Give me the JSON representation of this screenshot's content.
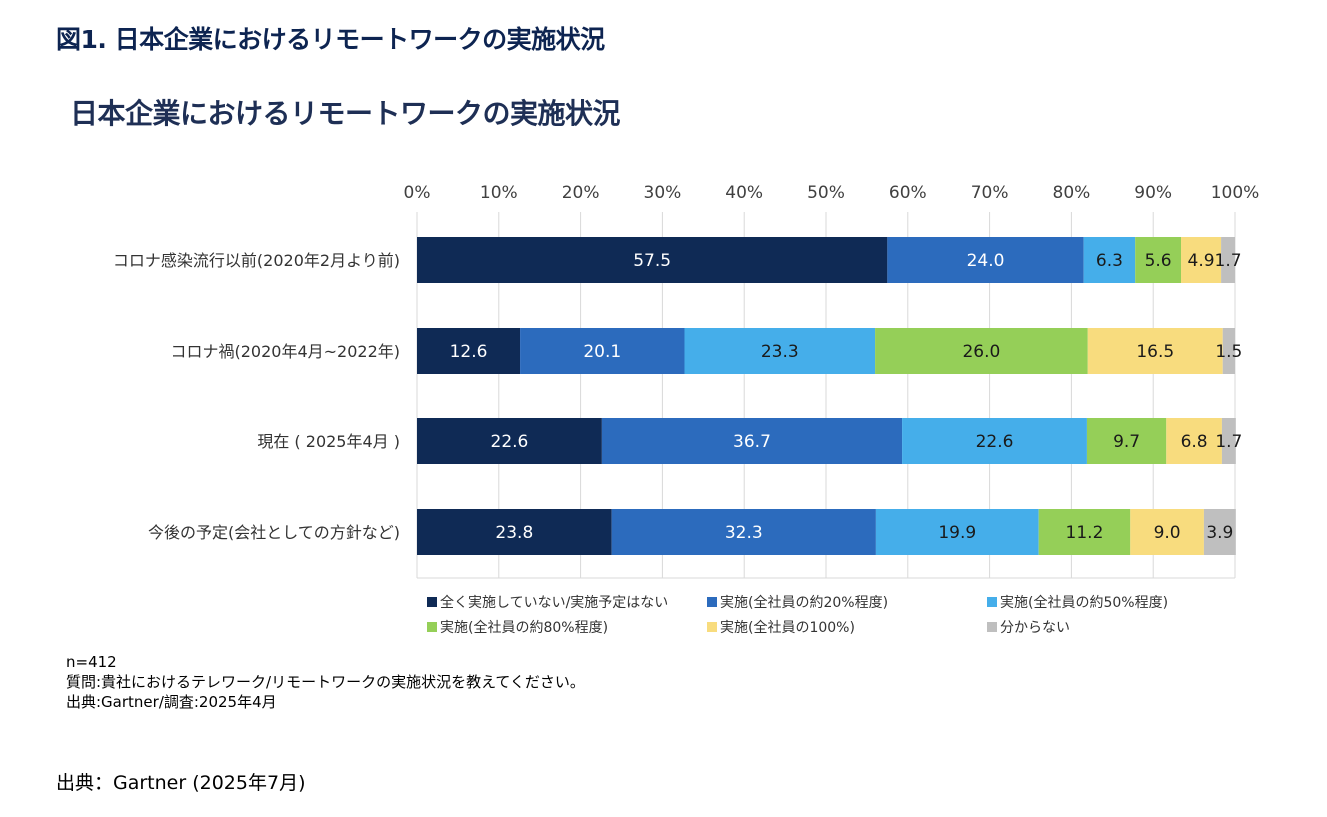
{
  "figure_title": "図1. 日本企業におけるリモートワークの実施状況",
  "notes": {
    "n": "n=412",
    "question": "質問:貴社におけるテレワーク/リモートワークの実施状況を教えてください。",
    "source": "出典:Gartner/調査:2025年4月"
  },
  "source_caption": "出典：Gartner (2025年7月)",
  "colors": {
    "s1": "#0f2a55",
    "s2": "#2c6bbd",
    "s3": "#45aeea",
    "s4": "#95cf58",
    "s5": "#f8dc7e",
    "s6": "#bfbfbf"
  },
  "chart_data": {
    "type": "bar",
    "orientation": "horizontal",
    "stacked": true,
    "title": "日本企業におけるリモートワークの実施状況",
    "xlim": [
      0,
      100
    ],
    "x_ticks": [
      "0%",
      "10%",
      "20%",
      "30%",
      "40%",
      "50%",
      "60%",
      "70%",
      "80%",
      "90%",
      "100%"
    ],
    "x_axis_position": "top",
    "legend_position": "bottom",
    "categories": [
      "コロナ感染流行以前(2020年2月より前)",
      "コロナ禍(2020年4月~2022年)",
      "現在 ( 2025年4月 )",
      "今後の予定(会社としての方針など)"
    ],
    "series": [
      {
        "name": "全く実施していない/実施予定はない",
        "values": [
          57.5,
          12.6,
          22.6,
          23.8
        ],
        "labels": [
          "57.5",
          "12.6",
          "22.6",
          "23.8"
        ],
        "color": "#0f2a55",
        "label_color": "#ffffff"
      },
      {
        "name": "実施(全社員の約20%程度)",
        "values": [
          24.0,
          20.1,
          36.7,
          32.3
        ],
        "labels": [
          "24.0",
          "20.1",
          "36.7",
          "32.3"
        ],
        "color": "#2c6bbd",
        "label_color": "#ffffff"
      },
      {
        "name": "実施(全社員の約50%程度)",
        "values": [
          6.3,
          23.3,
          22.6,
          19.9
        ],
        "labels": [
          "6.3",
          "23.3",
          "22.6",
          "19.9"
        ],
        "color": "#45aeea",
        "label_color": "#1a1a1a"
      },
      {
        "name": "実施(全社員の約80%程度)",
        "values": [
          5.6,
          26.0,
          9.7,
          11.2
        ],
        "labels": [
          "5.6",
          "26.0",
          "9.7",
          "11.2"
        ],
        "color": "#95cf58",
        "label_color": "#1a1a1a"
      },
      {
        "name": "実施(全社員の100%)",
        "values": [
          4.9,
          16.5,
          6.8,
          9.0
        ],
        "labels": [
          "4.9",
          "16.5",
          "6.8",
          "9.0"
        ],
        "color": "#f8dc7e",
        "label_color": "#1a1a1a"
      },
      {
        "name": "分からない",
        "values": [
          1.7,
          1.5,
          1.7,
          3.9
        ],
        "labels": [
          "1.7",
          "1.5",
          "1.7",
          "3.9"
        ],
        "color": "#bfbfbf",
        "label_color": "#1a1a1a"
      }
    ]
  }
}
